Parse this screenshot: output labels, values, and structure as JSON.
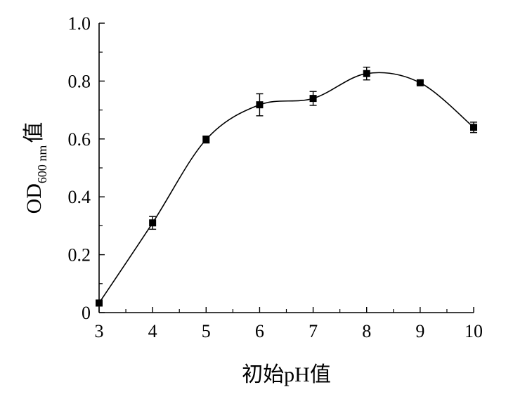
{
  "chart_data": {
    "type": "line",
    "title": "",
    "xlabel": "初始pH值",
    "ylabel": {
      "main": "OD",
      "subscript": "600 nm",
      "suffix": "值"
    },
    "x": [
      3,
      4,
      5,
      6,
      7,
      8,
      9,
      10
    ],
    "xlim": [
      3,
      10
    ],
    "ylim": [
      0,
      1.0
    ],
    "x_ticks": [
      "3",
      "4",
      "5",
      "6",
      "7",
      "8",
      "9",
      "10"
    ],
    "y_ticks": [
      "0",
      "0.2",
      "0.4",
      "0.6",
      "0.8",
      "1.0"
    ],
    "series": [
      {
        "values": [
          0.033,
          0.31,
          0.598,
          0.718,
          0.74,
          0.826,
          0.794,
          0.64
        ],
        "errors": [
          0.01,
          0.022,
          0.012,
          0.038,
          0.024,
          0.022,
          0.006,
          0.018
        ],
        "color": "#000000",
        "marker": "square",
        "smooth": true
      }
    ],
    "grid": false,
    "legend": "none"
  }
}
